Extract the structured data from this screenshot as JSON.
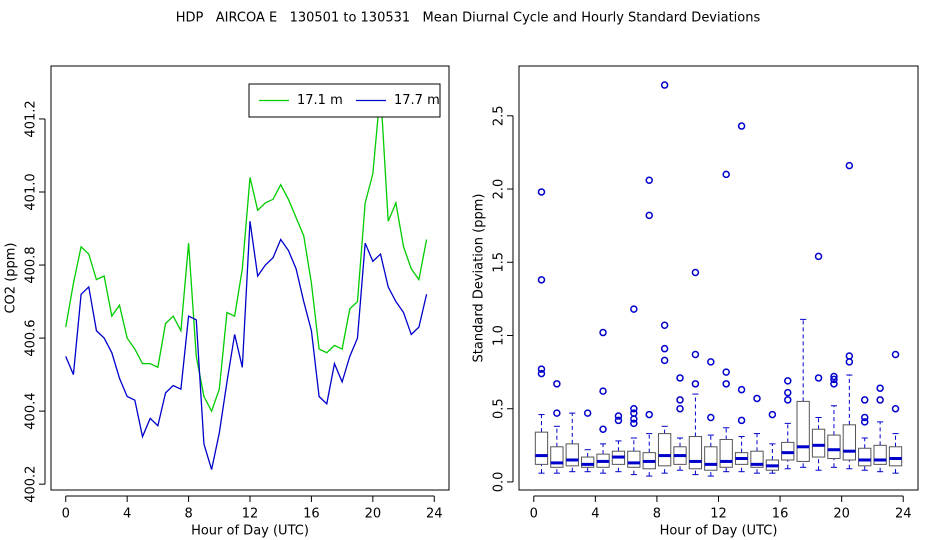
{
  "title": "HDP   AIRCOA E   130501 to 130531   Mean Diurnal Cycle and Hourly Standard Deviations",
  "chart_data": [
    {
      "type": "line",
      "xlabel": "Hour of Day (UTC)",
      "ylabel": "CO2 (ppm)",
      "x": [
        0,
        0.5,
        1,
        1.5,
        2,
        2.5,
        3,
        3.5,
        4,
        4.5,
        5,
        5.5,
        6,
        6.5,
        7,
        7.5,
        8,
        8.5,
        9,
        9.5,
        10,
        10.5,
        11,
        11.5,
        12,
        12.5,
        13,
        13.5,
        14,
        14.5,
        15,
        15.5,
        16,
        16.5,
        17,
        17.5,
        18,
        18.5,
        19,
        19.5,
        20,
        20.5,
        21,
        21.5,
        22,
        22.5,
        23,
        23.5
      ],
      "series": [
        {
          "name": "17.1 m",
          "color": "#00cc00",
          "values": [
            400.63,
            400.75,
            400.85,
            400.83,
            400.76,
            400.77,
            400.66,
            400.69,
            400.6,
            400.57,
            400.53,
            400.53,
            400.52,
            400.64,
            400.66,
            400.62,
            400.86,
            400.55,
            400.44,
            400.4,
            400.46,
            400.67,
            400.66,
            400.79,
            401.04,
            400.95,
            400.97,
            400.98,
            401.02,
            400.98,
            400.93,
            400.88,
            400.75,
            400.57,
            400.56,
            400.58,
            400.57,
            400.68,
            400.7,
            400.97,
            401.05,
            401.28,
            400.92,
            400.97,
            400.85,
            400.79,
            400.76,
            400.87
          ]
        },
        {
          "name": "17.7 m",
          "color": "#0000cc",
          "values": [
            400.55,
            400.5,
            400.72,
            400.74,
            400.62,
            400.6,
            400.56,
            400.49,
            400.44,
            400.43,
            400.33,
            400.38,
            400.36,
            400.45,
            400.47,
            400.46,
            400.66,
            400.65,
            400.31,
            400.24,
            400.34,
            400.48,
            400.61,
            400.52,
            400.92,
            400.77,
            400.8,
            400.82,
            400.87,
            400.84,
            400.79,
            400.7,
            400.62,
            400.44,
            400.42,
            400.53,
            400.48,
            400.55,
            400.6,
            400.86,
            400.81,
            400.83,
            400.74,
            400.7,
            400.67,
            400.61,
            400.63,
            400.72
          ]
        }
      ],
      "xlim": [
        -0.96,
        24.96
      ],
      "xticks": [
        0,
        4,
        8,
        12,
        16,
        20,
        24
      ],
      "ylim": [
        400.184,
        401.345
      ],
      "yticks": [
        400.2,
        400.4,
        400.6,
        400.8,
        {
          "value": 401,
          "label": "401.0"
        },
        401.2
      ],
      "legend": "topright"
    },
    {
      "type": "box",
      "xlabel": "Hour of Day (UTC)",
      "ylabel": "Standard Deviation (ppm)",
      "color": "#0000cc",
      "box_color": "#555555",
      "x": [
        0.5,
        1.5,
        2.5,
        3.5,
        4.5,
        5.5,
        6.5,
        7.5,
        8.5,
        9.5,
        10.5,
        11.5,
        12.5,
        13.5,
        14.5,
        15.5,
        16.5,
        17.5,
        18.5,
        19.5,
        20.5,
        21.5,
        22.5,
        23.5
      ],
      "lower": [
        0.06,
        0.06,
        0.07,
        0.07,
        0.06,
        0.07,
        0.05,
        0.04,
        0.06,
        0.08,
        0.05,
        0.04,
        0.07,
        0.07,
        0.06,
        0.06,
        0.09,
        0.1,
        0.08,
        0.1,
        0.09,
        0.08,
        0.07,
        0.06
      ],
      "q1": [
        0.12,
        0.1,
        0.11,
        0.1,
        0.1,
        0.12,
        0.1,
        0.09,
        0.11,
        0.12,
        0.09,
        0.08,
        0.1,
        0.12,
        0.1,
        0.08,
        0.15,
        0.14,
        0.17,
        0.16,
        0.15,
        0.11,
        0.12,
        0.11
      ],
      "median": [
        0.18,
        0.13,
        0.15,
        0.12,
        0.14,
        0.17,
        0.13,
        0.14,
        0.18,
        0.18,
        0.14,
        0.12,
        0.14,
        0.16,
        0.12,
        0.11,
        0.2,
        0.24,
        0.25,
        0.22,
        0.21,
        0.15,
        0.15,
        0.16
      ],
      "q3": [
        0.34,
        0.24,
        0.26,
        0.17,
        0.19,
        0.21,
        0.21,
        0.2,
        0.33,
        0.24,
        0.31,
        0.24,
        0.29,
        0.2,
        0.21,
        0.15,
        0.27,
        0.55,
        0.36,
        0.32,
        0.39,
        0.23,
        0.25,
        0.24
      ],
      "upper": [
        0.46,
        0.38,
        0.47,
        0.22,
        0.26,
        0.28,
        0.3,
        0.33,
        0.38,
        0.3,
        0.6,
        0.32,
        0.37,
        0.31,
        0.33,
        0.26,
        0.4,
        1.11,
        0.44,
        0.52,
        0.73,
        0.3,
        0.41,
        0.33
      ],
      "outliers": [
        [
          0.74,
          0.77,
          1.38,
          1.98
        ],
        [
          0.47,
          0.67
        ],
        [],
        [
          0.47
        ],
        [
          0.36,
          0.62,
          1.02
        ],
        [
          0.42,
          0.45
        ],
        [
          0.4,
          0.43,
          0.47,
          0.5,
          1.18
        ],
        [
          0.46,
          1.82,
          2.06
        ],
        [
          0.83,
          0.91,
          1.07,
          2.71
        ],
        [
          0.5,
          0.56,
          0.71
        ],
        [
          0.67,
          0.87,
          1.43
        ],
        [
          0.44,
          0.82
        ],
        [
          0.67,
          0.75,
          2.1
        ],
        [
          0.42,
          0.63,
          2.43
        ],
        [
          0.57
        ],
        [
          0.46
        ],
        [
          0.56,
          0.61,
          0.69
        ],
        [],
        [
          0.71,
          1.54
        ],
        [
          0.67,
          0.7,
          0.72
        ],
        [
          0.82,
          0.86,
          2.16
        ],
        [
          0.41,
          0.44,
          0.56
        ],
        [
          0.56,
          0.64
        ],
        [
          0.5,
          0.87
        ]
      ],
      "xlim": [
        -0.96,
        24.96
      ],
      "xticks": [
        0,
        4,
        8,
        12,
        16,
        20,
        24
      ],
      "ylim": [
        -0.055,
        2.84
      ],
      "yticks": [
        {
          "value": 0,
          "label": "0.0"
        },
        0.5,
        {
          "value": 1,
          "label": "1.0"
        },
        1.5,
        {
          "value": 2,
          "label": "2.0"
        },
        2.5
      ]
    }
  ]
}
